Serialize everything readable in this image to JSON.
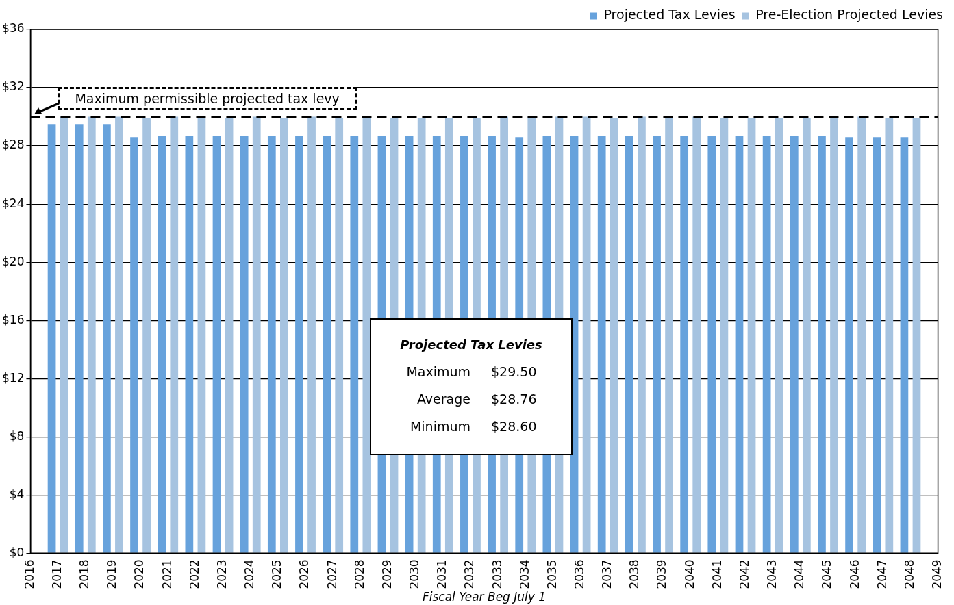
{
  "chart_data": {
    "type": "bar",
    "xlabel": "Fiscal Year Beg July 1",
    "x": [
      2017,
      2018,
      2019,
      2020,
      2021,
      2022,
      2023,
      2024,
      2025,
      2026,
      2027,
      2028,
      2029,
      2030,
      2031,
      2032,
      2033,
      2034,
      2035,
      2036,
      2037,
      2038,
      2039,
      2040,
      2041,
      2042,
      2043,
      2044,
      2045,
      2046,
      2047,
      2048
    ],
    "series": [
      {
        "name": "Projected Tax Levies",
        "color": "#67a2dc",
        "values": [
          29.5,
          29.5,
          29.5,
          28.6,
          28.7,
          28.7,
          28.7,
          28.7,
          28.7,
          28.7,
          28.7,
          28.7,
          28.7,
          28.7,
          28.7,
          28.7,
          28.7,
          28.6,
          28.7,
          28.7,
          28.7,
          28.7,
          28.7,
          28.7,
          28.7,
          28.7,
          28.7,
          28.7,
          28.7,
          28.6,
          28.6,
          28.6
        ]
      },
      {
        "name": "Pre-Election Projected Levies",
        "color": "#a6c3e0",
        "values": [
          30.0,
          30.0,
          30.0,
          29.9,
          30.0,
          29.9,
          29.9,
          30.0,
          29.9,
          30.0,
          29.9,
          30.0,
          29.9,
          29.9,
          29.9,
          29.9,
          30.0,
          30.0,
          30.0,
          30.0,
          29.9,
          30.0,
          30.0,
          30.0,
          29.9,
          29.9,
          29.9,
          29.9,
          30.0,
          30.0,
          29.9,
          29.9
        ]
      }
    ],
    "xlim": [
      2016,
      2049
    ],
    "xticks": [
      2016,
      2017,
      2018,
      2019,
      2020,
      2021,
      2022,
      2023,
      2024,
      2025,
      2026,
      2027,
      2028,
      2029,
      2030,
      2031,
      2032,
      2033,
      2034,
      2035,
      2036,
      2037,
      2038,
      2039,
      2040,
      2041,
      2042,
      2043,
      2044,
      2045,
      2046,
      2047,
      2048,
      2049
    ],
    "ylim": [
      0,
      36
    ],
    "yticks": [
      {
        "value": 0,
        "label": "$0"
      },
      {
        "value": 4,
        "label": "$4"
      },
      {
        "value": 8,
        "label": "$8"
      },
      {
        "value": 12,
        "label": "$12"
      },
      {
        "value": 16,
        "label": "$16"
      },
      {
        "value": 20,
        "label": "$20"
      },
      {
        "value": 24,
        "label": "$24"
      },
      {
        "value": 28,
        "label": "$28"
      },
      {
        "value": 32,
        "label": "$32"
      },
      {
        "value": 36,
        "label": "$36"
      }
    ],
    "grid": "y",
    "legend": "top right",
    "ref_lines": [
      {
        "axis": "y",
        "value": 30,
        "label": "Maximum permissible projected tax levy",
        "color": "#000000",
        "line_style": "dashed"
      }
    ],
    "annotations": [
      "Projected Tax Levies",
      "Maximum",
      "$29.50",
      "Average",
      "$28.76",
      "Minimum",
      "$28.60"
    ]
  }
}
